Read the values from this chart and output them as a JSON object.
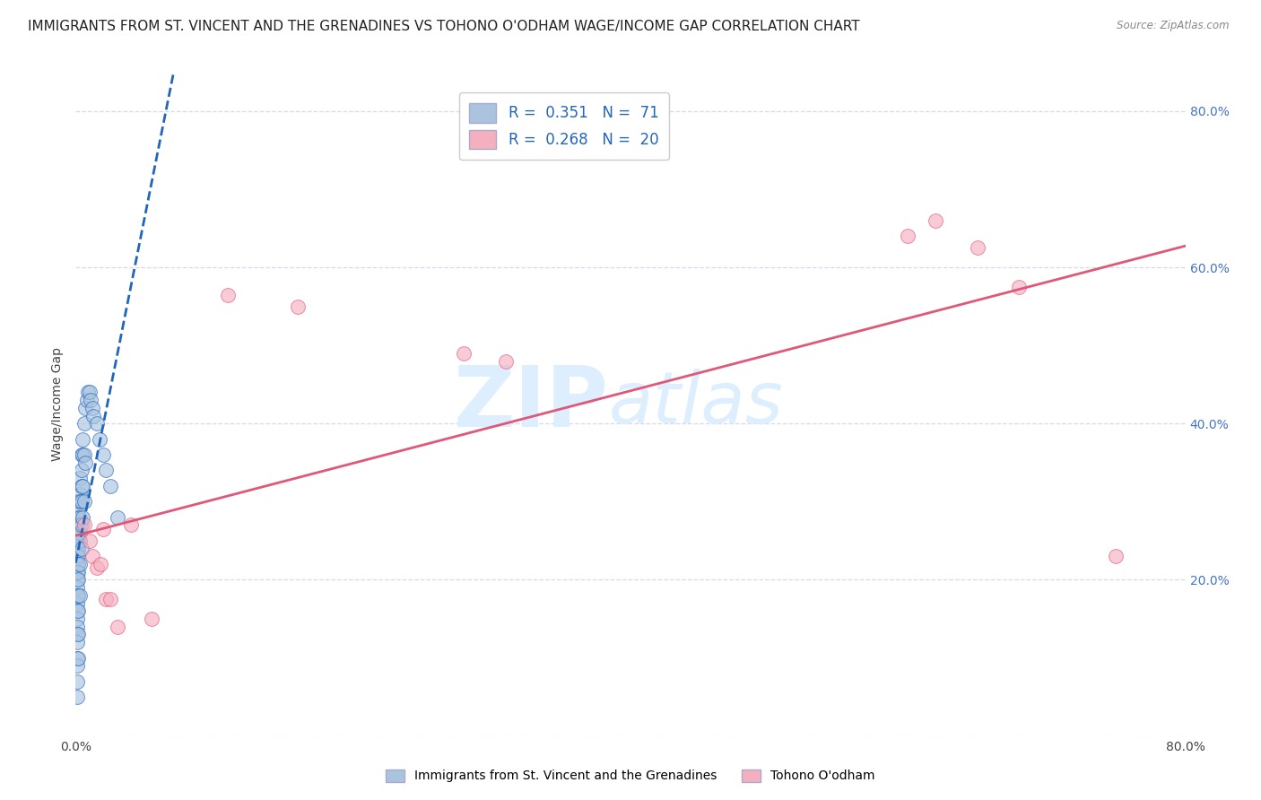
{
  "title": "IMMIGRANTS FROM ST. VINCENT AND THE GRENADINES VS TOHONO O'ODHAM WAGE/INCOME GAP CORRELATION CHART",
  "source": "Source: ZipAtlas.com",
  "ylabel": "Wage/Income Gap",
  "legend_label_blue": "Immigrants from St. Vincent and the Grenadines",
  "legend_label_pink": "Tohono O'odham",
  "R_blue": 0.351,
  "N_blue": 71,
  "R_pink": 0.268,
  "N_pink": 20,
  "blue_color": "#aac4e0",
  "blue_line_color": "#2266bb",
  "pink_color": "#f5b0c0",
  "pink_line_color": "#e05878",
  "blue_scatter_x": [
    0.001,
    0.001,
    0.001,
    0.001,
    0.001,
    0.001,
    0.001,
    0.001,
    0.001,
    0.001,
    0.001,
    0.001,
    0.001,
    0.001,
    0.001,
    0.001,
    0.001,
    0.001,
    0.001,
    0.001,
    0.002,
    0.002,
    0.002,
    0.002,
    0.002,
    0.002,
    0.002,
    0.002,
    0.002,
    0.002,
    0.002,
    0.002,
    0.002,
    0.002,
    0.002,
    0.003,
    0.003,
    0.003,
    0.003,
    0.003,
    0.003,
    0.003,
    0.003,
    0.003,
    0.004,
    0.004,
    0.004,
    0.004,
    0.004,
    0.004,
    0.005,
    0.005,
    0.005,
    0.005,
    0.006,
    0.006,
    0.006,
    0.007,
    0.007,
    0.008,
    0.009,
    0.01,
    0.011,
    0.012,
    0.013,
    0.015,
    0.017,
    0.02,
    0.022,
    0.025,
    0.03
  ],
  "blue_scatter_y": [
    0.27,
    0.26,
    0.25,
    0.24,
    0.23,
    0.22,
    0.21,
    0.2,
    0.19,
    0.18,
    0.17,
    0.16,
    0.15,
    0.14,
    0.13,
    0.12,
    0.1,
    0.09,
    0.07,
    0.05,
    0.3,
    0.29,
    0.28,
    0.27,
    0.26,
    0.25,
    0.24,
    0.23,
    0.22,
    0.21,
    0.2,
    0.18,
    0.16,
    0.13,
    0.1,
    0.33,
    0.31,
    0.3,
    0.28,
    0.27,
    0.26,
    0.25,
    0.22,
    0.18,
    0.36,
    0.34,
    0.32,
    0.3,
    0.27,
    0.24,
    0.38,
    0.36,
    0.32,
    0.28,
    0.4,
    0.36,
    0.3,
    0.42,
    0.35,
    0.43,
    0.44,
    0.44,
    0.43,
    0.42,
    0.41,
    0.4,
    0.38,
    0.36,
    0.34,
    0.32,
    0.28
  ],
  "pink_scatter_x": [
    0.006,
    0.01,
    0.012,
    0.015,
    0.018,
    0.02,
    0.022,
    0.025,
    0.03,
    0.04,
    0.055,
    0.11,
    0.16,
    0.28,
    0.31,
    0.6,
    0.62,
    0.65,
    0.68,
    0.75
  ],
  "pink_scatter_y": [
    0.27,
    0.25,
    0.23,
    0.215,
    0.22,
    0.265,
    0.175,
    0.175,
    0.14,
    0.27,
    0.15,
    0.565,
    0.55,
    0.49,
    0.48,
    0.64,
    0.66,
    0.625,
    0.575,
    0.23
  ],
  "xlim": [
    0.0,
    0.8
  ],
  "ylim": [
    0.0,
    0.85
  ],
  "xticks": [
    0.0,
    0.1,
    0.2,
    0.3,
    0.4,
    0.5,
    0.6,
    0.7,
    0.8
  ],
  "yticks": [
    0.0,
    0.2,
    0.4,
    0.6,
    0.8
  ],
  "ytick_labels": [
    "",
    "20.0%",
    "40.0%",
    "60.0%",
    "80.0%"
  ],
  "watermark_zip": "ZIP",
  "watermark_atlas": "atlas",
  "watermark_color": "#ddeeff",
  "grid_color": "#d8d8e8",
  "title_fontsize": 11,
  "axis_fontsize": 9,
  "tick_color": "#4472c4"
}
